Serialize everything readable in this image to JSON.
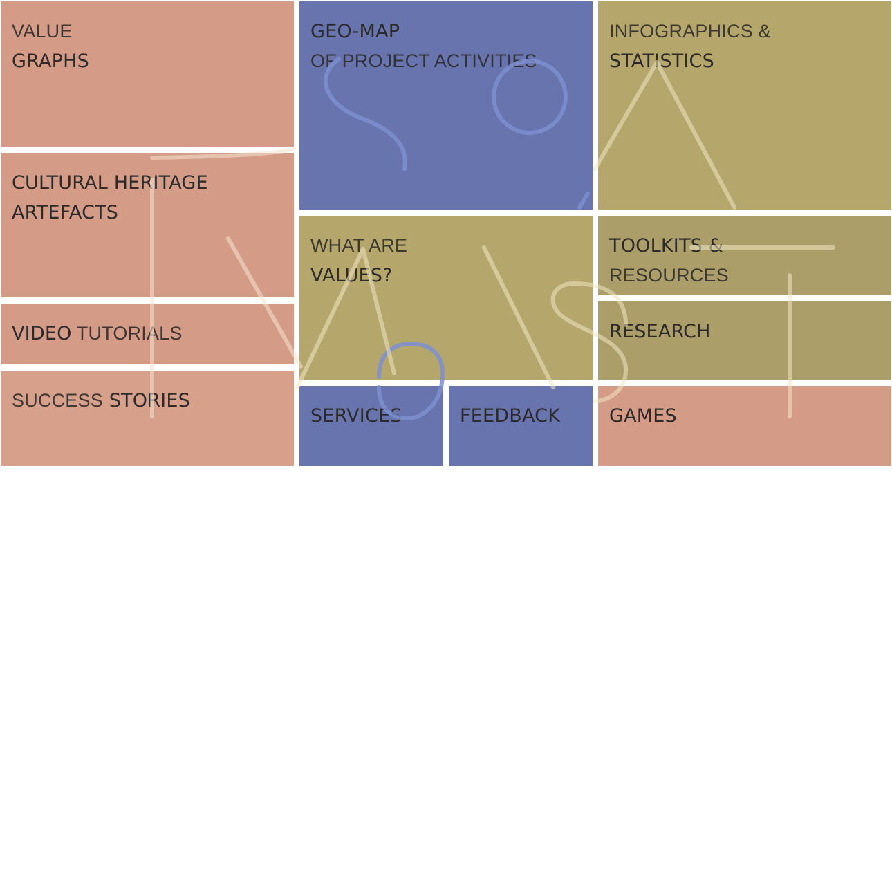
{
  "tiles": [
    {
      "id": "value-graphs",
      "lines": [
        {
          "text": "VALUE",
          "weight": "thin"
        },
        {
          "text": "GRAPHS",
          "weight": "bold"
        }
      ]
    },
    {
      "id": "cultural-heritage-artefacts",
      "lines": [
        {
          "text": "CULTURAL HERITAGE",
          "weight": "bold"
        },
        {
          "text": "ARTEFACTS",
          "weight": "bold"
        }
      ]
    },
    {
      "id": "video-tutorials",
      "inline": [
        {
          "text": "VIDEO",
          "weight": "bold"
        },
        {
          "text": " TUTORIALS",
          "weight": "thin"
        }
      ]
    },
    {
      "id": "success-stories",
      "inline": [
        {
          "text": "SUCCESS",
          "weight": "thin"
        },
        {
          "text": " STORIES",
          "weight": "bold"
        }
      ]
    },
    {
      "id": "geo-map",
      "lines": [
        {
          "text": "GEO-MAP",
          "weight": "bold"
        },
        {
          "text": "OF PROJECT ACTIVITIES",
          "weight": "thin"
        }
      ]
    },
    {
      "id": "what-are-values",
      "lines": [
        {
          "text": "WHAT ARE",
          "weight": "thin"
        },
        {
          "text": "VALUES?",
          "weight": "bold"
        }
      ]
    },
    {
      "id": "services",
      "lines": [
        {
          "text": "SERVICES",
          "weight": "bold"
        }
      ]
    },
    {
      "id": "feedback",
      "lines": [
        {
          "text": "FEEDBACK",
          "weight": "bold"
        }
      ]
    },
    {
      "id": "infographics-statistics",
      "lines": [
        {
          "text": "INFOGRAPHICS &",
          "weight": "thin"
        },
        {
          "text": "STATISTICS",
          "weight": "bold"
        }
      ]
    },
    {
      "id": "toolkits-resources",
      "lines": [
        {
          "text": "TOOLKITS &",
          "weight": "bold"
        },
        {
          "text": "RESOURCES",
          "weight": "thin"
        }
      ]
    },
    {
      "id": "research",
      "lines": [
        {
          "text": "RESEARCH",
          "weight": "bold"
        }
      ]
    },
    {
      "id": "games",
      "lines": [
        {
          "text": "GAMES",
          "weight": "bold"
        }
      ]
    }
  ],
  "colors": {
    "salmon": "#d49b86",
    "blue": "#6874ad",
    "olive": "#b5a66c",
    "text": "#2c2a2a",
    "outline_light": "#f3e3cf",
    "outline_blue": "#7d8fd0"
  }
}
